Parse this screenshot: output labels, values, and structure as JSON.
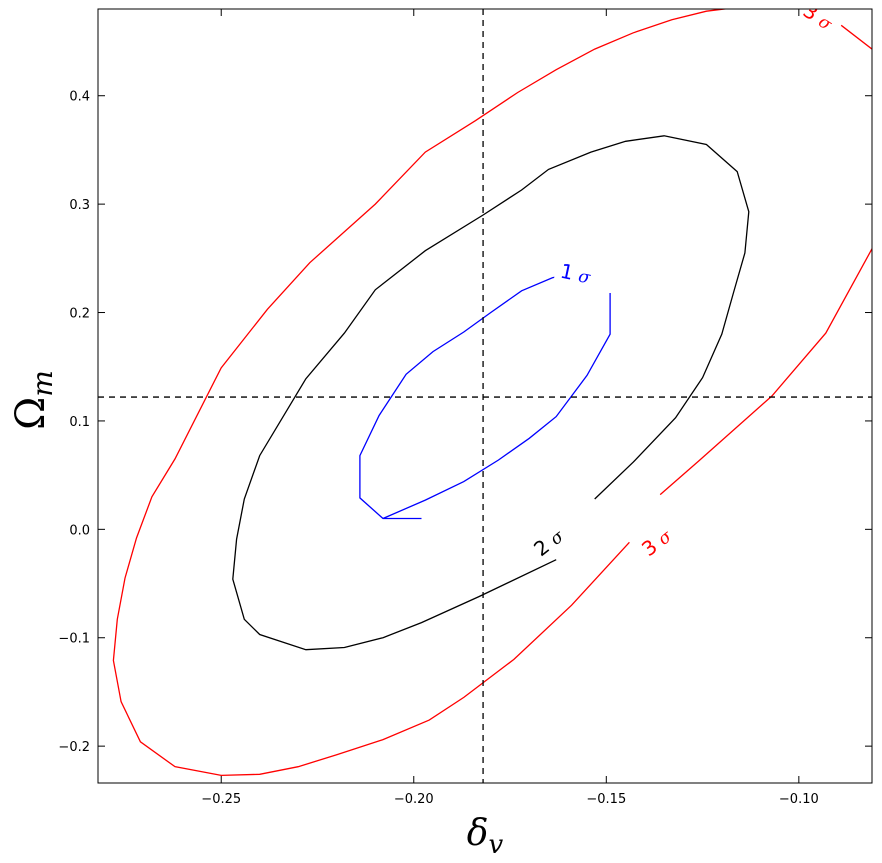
{
  "chart_data": {
    "type": "contour",
    "xlabel": "δ",
    "xlabel_sub": "v",
    "ylabel": "Ω",
    "ylabel_sub": "m",
    "xlim": [
      -0.282,
      -0.081
    ],
    "ylim": [
      -0.234,
      0.48
    ],
    "xticks": [
      -0.25,
      -0.2,
      -0.15,
      -0.1
    ],
    "xtick_labels": [
      "−0.25",
      "−0.20",
      "−0.15",
      "−0.10"
    ],
    "yticks": [
      -0.2,
      -0.1,
      0.0,
      0.1,
      0.2,
      0.3,
      0.4
    ],
    "ytick_labels": [
      "−0.2",
      "−0.1",
      "0.0",
      "0.1",
      "0.2",
      "0.3",
      "0.4"
    ],
    "grid": false,
    "reference_lines": {
      "x": -0.182,
      "y": 0.122,
      "style": "dashed",
      "color": "#000000"
    },
    "series": [
      {
        "label": "1σ",
        "label_text": "1",
        "color": "#0000ff",
        "points": [
          [
            -0.149,
            0.218
          ],
          [
            -0.149,
            0.18
          ],
          [
            -0.155,
            0.142
          ],
          [
            -0.163,
            0.104
          ],
          [
            -0.17,
            0.084
          ],
          [
            -0.178,
            0.064
          ],
          [
            -0.187,
            0.044
          ],
          [
            -0.197,
            0.027
          ],
          [
            -0.208,
            0.01
          ],
          [
            -0.198,
            0.01
          ],
          [
            -0.208,
            0.01
          ],
          [
            -0.214,
            0.029
          ],
          [
            -0.214,
            0.068
          ],
          [
            -0.209,
            0.105
          ],
          [
            -0.202,
            0.143
          ],
          [
            -0.195,
            0.164
          ],
          [
            -0.187,
            0.182
          ],
          [
            -0.18,
            0.2
          ],
          [
            -0.172,
            0.22
          ],
          [
            -0.164,
            0.232
          ],
          [
            -0.159,
            0.236
          ],
          [
            -0.156,
            0.235
          ]
        ]
      },
      {
        "label": "2σ",
        "label_text": "2",
        "color": "#000000",
        "points": [
          [
            -0.163,
            -0.028
          ],
          [
            -0.183,
            -0.062
          ],
          [
            -0.198,
            -0.086
          ],
          [
            -0.208,
            -0.1
          ],
          [
            -0.218,
            -0.109
          ],
          [
            -0.228,
            -0.111
          ],
          [
            -0.24,
            -0.097
          ],
          [
            -0.244,
            -0.083
          ],
          [
            -0.247,
            -0.046
          ],
          [
            -0.246,
            -0.009
          ],
          [
            -0.244,
            0.028
          ],
          [
            -0.24,
            0.068
          ],
          [
            -0.228,
            0.139
          ],
          [
            -0.218,
            0.181
          ],
          [
            -0.21,
            0.221
          ],
          [
            -0.197,
            0.257
          ],
          [
            -0.182,
            0.29
          ],
          [
            -0.172,
            0.313
          ],
          [
            -0.165,
            0.332
          ],
          [
            -0.154,
            0.348
          ],
          [
            -0.145,
            0.358
          ],
          [
            -0.135,
            0.363
          ],
          [
            -0.124,
            0.355
          ],
          [
            -0.116,
            0.33
          ],
          [
            -0.113,
            0.293
          ],
          [
            -0.114,
            0.255
          ],
          [
            -0.117,
            0.218
          ],
          [
            -0.12,
            0.18
          ],
          [
            -0.125,
            0.14
          ],
          [
            -0.132,
            0.103
          ],
          [
            -0.143,
            0.062
          ],
          [
            -0.153,
            0.028
          ]
        ]
      },
      {
        "label": "3σ",
        "label_text": "3",
        "color": "#ff0000",
        "points": [
          [
            -0.0805,
            0.262
          ],
          [
            -0.093,
            0.181
          ],
          [
            -0.107,
            0.123
          ],
          [
            -0.126,
            0.063
          ],
          [
            -0.136,
            0.032
          ]
        ]
      },
      {
        "label": "3σ",
        "label_text": "3",
        "color": "#ff0000",
        "points": [
          [
            -0.144,
            -0.012
          ],
          [
            -0.159,
            -0.07
          ],
          [
            -0.174,
            -0.12
          ],
          [
            -0.187,
            -0.155
          ],
          [
            -0.196,
            -0.176
          ],
          [
            -0.208,
            -0.194
          ],
          [
            -0.22,
            -0.208
          ],
          [
            -0.23,
            -0.219
          ],
          [
            -0.24,
            -0.226
          ],
          [
            -0.25,
            -0.227
          ],
          [
            -0.262,
            -0.219
          ],
          [
            -0.271,
            -0.196
          ],
          [
            -0.276,
            -0.159
          ],
          [
            -0.278,
            -0.121
          ],
          [
            -0.277,
            -0.083
          ],
          [
            -0.275,
            -0.045
          ],
          [
            -0.272,
            -0.008
          ],
          [
            -0.268,
            0.03
          ],
          [
            -0.262,
            0.065
          ],
          [
            -0.25,
            0.149
          ],
          [
            -0.238,
            0.203
          ],
          [
            -0.227,
            0.246
          ],
          [
            -0.21,
            0.3
          ],
          [
            -0.197,
            0.348
          ],
          [
            -0.184,
            0.377
          ],
          [
            -0.173,
            0.403
          ],
          [
            -0.163,
            0.424
          ],
          [
            -0.153,
            0.443
          ],
          [
            -0.143,
            0.458
          ],
          [
            -0.133,
            0.47
          ],
          [
            -0.124,
            0.478
          ],
          [
            -0.117,
            0.481
          ],
          [
            -0.116,
            0.481
          ]
        ]
      },
      {
        "label": "3σ",
        "label_text": "3",
        "color": "#ff0000",
        "points": [
          [
            -0.089,
            0.465
          ],
          [
            -0.081,
            0.443
          ]
        ]
      }
    ],
    "contour_labels": [
      {
        "number": "1",
        "symbol": "σ",
        "x": -0.158,
        "y": 0.236,
        "angle": 12,
        "color": "#0000ff"
      },
      {
        "number": "2",
        "symbol": "σ",
        "x": -0.165,
        "y": -0.012,
        "angle": -38,
        "color": "#000000"
      },
      {
        "number": "3",
        "symbol": "σ",
        "x": -0.137,
        "y": -0.012,
        "angle": -38,
        "color": "#ff0000"
      },
      {
        "number": "3",
        "symbol": "σ",
        "x": -0.095,
        "y": 0.473,
        "angle": 33,
        "color": "#ff0000"
      }
    ]
  }
}
